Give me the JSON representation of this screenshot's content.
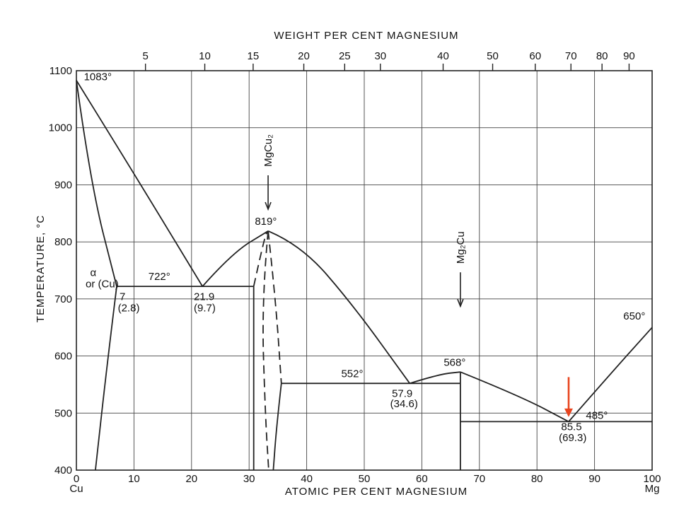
{
  "chart_data": {
    "type": "phase-diagram",
    "title": "WEIGHT PER CENT MAGNESIUM",
    "xlabel": "ATOMIC PER CENT MAGNESIUM",
    "ylabel": "TEMPERATURE, °C",
    "xlim": [
      0,
      100
    ],
    "ylim": [
      400,
      1100
    ],
    "grid": true,
    "x_ticks": [
      "0",
      "10",
      "20",
      "30",
      "40",
      "50",
      "60",
      "70",
      "80",
      "90",
      "100"
    ],
    "y_ticks": [
      "400",
      "500",
      "600",
      "700",
      "800",
      "900",
      "1000",
      "1100"
    ],
    "x_end_labels": {
      "left": "Cu",
      "right": "Mg"
    },
    "top_axis": {
      "label": "WEIGHT PER CENT MAGNESIUM",
      "ticks": [
        {
          "label": "5",
          "at_percent": 12
        },
        {
          "label": "10",
          "at_percent": 22.3
        },
        {
          "label": "15",
          "at_percent": 30.7
        },
        {
          "label": "20",
          "at_percent": 39.5
        },
        {
          "label": "25",
          "at_percent": 46.6
        },
        {
          "label": "30",
          "at_percent": 52.8
        },
        {
          "label": "40",
          "at_percent": 63.7
        },
        {
          "label": "50",
          "at_percent": 72.3
        },
        {
          "label": "60",
          "at_percent": 79.7
        },
        {
          "label": "70",
          "at_percent": 85.9
        },
        {
          "label": "80",
          "at_percent": 91.3
        },
        {
          "label": "90",
          "at_percent": 96.0
        }
      ]
    },
    "series": [
      {
        "style": "solid",
        "points": [
          [
            0,
            1083
          ],
          [
            10,
            920
          ],
          [
            21.9,
            722
          ]
        ]
      },
      {
        "style": "solid",
        "points": [
          [
            21.9,
            722
          ],
          [
            27,
            780
          ],
          [
            33.3,
            819
          ]
        ]
      },
      {
        "style": "solid",
        "points": [
          [
            33.3,
            819
          ],
          [
            39,
            795
          ],
          [
            48,
            690
          ],
          [
            57.9,
            552
          ]
        ]
      },
      {
        "style": "solid",
        "points": [
          [
            57.9,
            552
          ],
          [
            63,
            568
          ],
          [
            66.7,
            572
          ]
        ]
      },
      {
        "style": "solid",
        "points": [
          [
            66.7,
            572
          ],
          [
            77,
            530
          ],
          [
            85.5,
            485
          ]
        ]
      },
      {
        "style": "solid",
        "points": [
          [
            85.5,
            485
          ],
          [
            92,
            560
          ],
          [
            100,
            650
          ]
        ]
      },
      {
        "style": "solid",
        "points": [
          [
            0,
            1083
          ],
          [
            2.5,
            900
          ],
          [
            7,
            722
          ]
        ]
      },
      {
        "style": "solid",
        "points": [
          [
            7,
            722
          ],
          [
            5.5,
            600
          ],
          [
            3.3,
            400
          ]
        ]
      },
      {
        "style": "solid",
        "points": [
          [
            7,
            722
          ],
          [
            30.8,
            722
          ]
        ]
      },
      {
        "style": "solid",
        "points": [
          [
            30.8,
            722
          ],
          [
            30.8,
            400
          ]
        ]
      },
      {
        "style": "dashed",
        "points": [
          [
            30.8,
            722
          ],
          [
            32.7,
            810
          ],
          [
            33.3,
            819
          ]
        ]
      },
      {
        "style": "dashed",
        "points": [
          [
            33.3,
            819
          ],
          [
            32.2,
            700
          ],
          [
            32.8,
            500
          ],
          [
            33.4,
            400
          ]
        ]
      },
      {
        "style": "dashed",
        "points": [
          [
            33.3,
            819
          ],
          [
            34.6,
            700
          ],
          [
            35.6,
            552
          ]
        ]
      },
      {
        "style": "solid",
        "points": [
          [
            35.6,
            552
          ],
          [
            34.8,
            480
          ],
          [
            34.2,
            400
          ]
        ]
      },
      {
        "style": "solid",
        "points": [
          [
            35.6,
            552
          ],
          [
            66.7,
            552
          ]
        ]
      },
      {
        "style": "solid",
        "points": [
          [
            66.7,
            572
          ],
          [
            66.7,
            400
          ]
        ]
      },
      {
        "style": "solid",
        "points": [
          [
            66.7,
            485
          ],
          [
            100,
            485
          ]
        ]
      }
    ],
    "annotations": [
      {
        "text": "1083°",
        "x": 1.3,
        "y": 1083
      },
      {
        "text": "722°",
        "x": 12.5,
        "y": 733
      },
      {
        "text": "7",
        "x": 7.5,
        "y": 698
      },
      {
        "text": "(2.8)",
        "x": 7.2,
        "y": 678
      },
      {
        "text": "21.9",
        "x": 20.4,
        "y": 698
      },
      {
        "text": "(9.7)",
        "x": 20.4,
        "y": 678
      },
      {
        "text": "819°",
        "x": 31,
        "y": 830
      },
      {
        "text": "552°",
        "x": 46,
        "y": 563
      },
      {
        "text": "57.9",
        "x": 54.8,
        "y": 528
      },
      {
        "text": "(34.6)",
        "x": 54.5,
        "y": 510
      },
      {
        "text": "568°",
        "x": 63.8,
        "y": 583
      },
      {
        "text": "650°",
        "x": 95,
        "y": 664
      },
      {
        "text": "485°",
        "x": 88.5,
        "y": 490
      },
      {
        "text": "85.5",
        "x": 84.2,
        "y": 470
      },
      {
        "text": "(69.3)",
        "x": 83.8,
        "y": 451
      },
      {
        "text": "α",
        "x": 2.4,
        "y": 740
      },
      {
        "text": "or (Cu)",
        "x": 1.6,
        "y": 720
      }
    ],
    "phase_labels": [
      {
        "text": "MgCu₂",
        "x": 33.3,
        "y": 960
      },
      {
        "text": "Mg₂Cu",
        "x": 66.7,
        "y": 790
      }
    ],
    "markers": [
      {
        "type": "arrow",
        "color": "#e8451f",
        "x": 85.5,
        "y_from": 563,
        "y_to": 493
      }
    ]
  }
}
